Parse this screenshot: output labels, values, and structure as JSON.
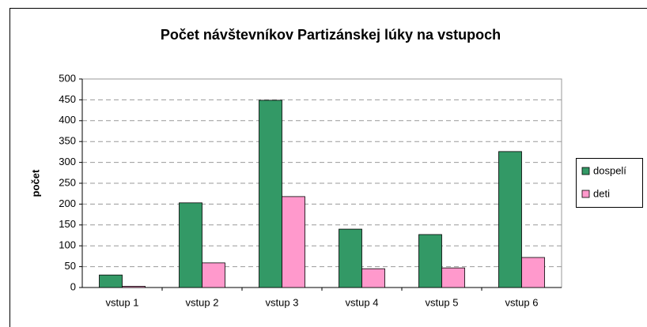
{
  "chart_data": {
    "type": "bar",
    "title": "Počet návštevníkov Partizánskej lúky na vstupoch",
    "y_label": "počet",
    "categories": [
      "vstup 1",
      "vstup 2",
      "vstup 3",
      "vstup 4",
      "vstup 5",
      "vstup 6"
    ],
    "series": [
      {
        "name": "dospelí",
        "color": "#339966",
        "values": [
          30,
          203,
          449,
          140,
          127,
          326
        ]
      },
      {
        "name": "deti",
        "color": "#ff99cc",
        "values": [
          3,
          59,
          218,
          45,
          47,
          72
        ]
      }
    ],
    "ylim": [
      0,
      500
    ],
    "yticks": [
      0,
      50,
      100,
      150,
      200,
      250,
      300,
      350,
      400,
      450,
      500
    ],
    "grid": true,
    "legend": "right"
  }
}
